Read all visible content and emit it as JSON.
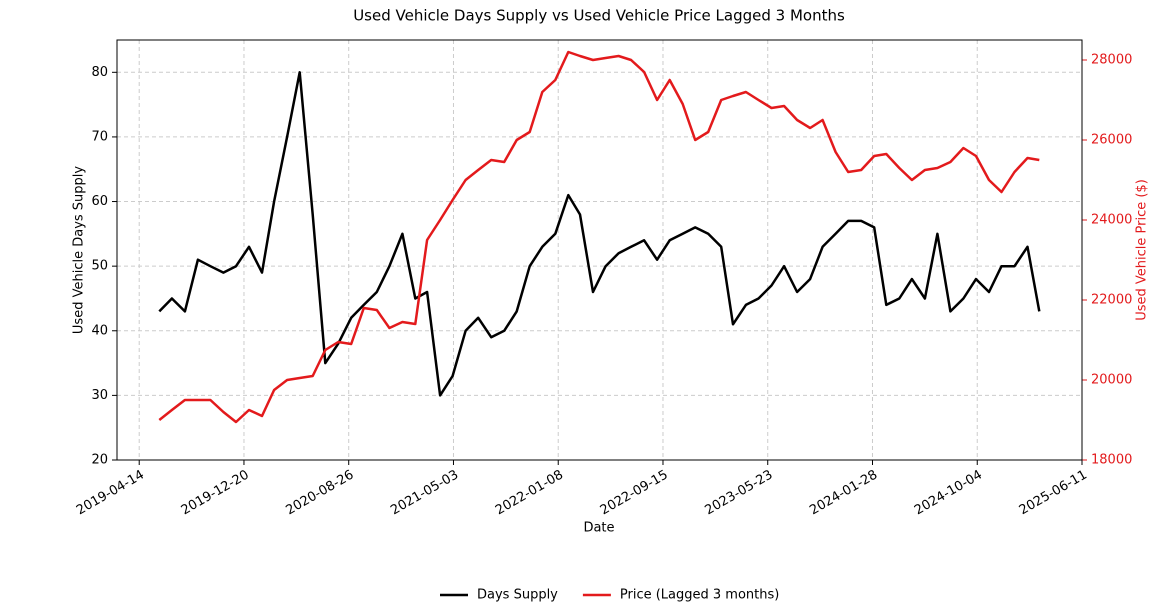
{
  "chart_data": {
    "type": "line",
    "title": "Used Vehicle Days Supply vs Used Vehicle Price Lagged 3 Months",
    "xlabel": "Date",
    "ylabel": "Used Vehicle Days Supply",
    "y2label": "Used Vehicle Price ($)",
    "x": [
      "2019-06-01",
      "2019-07-01",
      "2019-08-01",
      "2019-09-01",
      "2019-10-01",
      "2019-11-01",
      "2019-12-01",
      "2020-01-01",
      "2020-02-01",
      "2020-03-01",
      "2020-04-01",
      "2020-05-01",
      "2020-06-01",
      "2020-07-01",
      "2020-08-01",
      "2020-09-01",
      "2020-10-01",
      "2020-11-01",
      "2020-12-01",
      "2021-01-01",
      "2021-02-01",
      "2021-03-01",
      "2021-04-01",
      "2021-05-01",
      "2021-06-01",
      "2021-07-01",
      "2021-08-01",
      "2021-09-01",
      "2021-10-01",
      "2021-11-01",
      "2021-12-01",
      "2022-01-01",
      "2022-02-01",
      "2022-03-01",
      "2022-04-01",
      "2022-05-01",
      "2022-06-01",
      "2022-07-01",
      "2022-08-01",
      "2022-09-01",
      "2022-10-01",
      "2022-11-01",
      "2022-12-01",
      "2023-01-01",
      "2023-02-01",
      "2023-03-01",
      "2023-04-01",
      "2023-05-01",
      "2023-06-01",
      "2023-07-01",
      "2023-08-01",
      "2023-09-01",
      "2023-10-01",
      "2023-11-01",
      "2023-12-01",
      "2024-01-01",
      "2024-02-01",
      "2024-03-01",
      "2024-04-01",
      "2024-05-01",
      "2024-06-01",
      "2024-07-01",
      "2024-08-01",
      "2024-09-01",
      "2024-10-01",
      "2024-11-01",
      "2024-12-01",
      "2025-01-01",
      "2025-02-01",
      "2025-03-01"
    ],
    "series": [
      {
        "name": "Days Supply",
        "color": "#000000",
        "values": [
          43,
          45,
          43,
          51,
          50,
          49,
          50,
          53,
          49,
          60,
          70,
          80,
          58,
          35,
          38,
          42,
          44,
          46,
          50,
          55,
          45,
          46,
          30,
          33,
          40,
          42,
          39,
          40,
          43,
          50,
          53,
          55,
          61,
          58,
          46,
          50,
          52,
          53,
          54,
          51,
          54,
          55,
          56,
          55,
          53,
          41,
          44,
          45,
          47,
          50,
          46,
          48,
          53,
          55,
          57,
          57,
          56,
          44,
          45,
          48,
          45,
          55,
          43,
          45,
          48,
          46,
          50,
          50,
          53,
          43
        ]
      },
      {
        "name": "Price (Lagged 3 months)",
        "color": "#e31a1c",
        "axis": "y2",
        "values": [
          19000,
          19250,
          19500,
          19500,
          19500,
          19200,
          18950,
          19250,
          19100,
          19750,
          20000,
          20050,
          20100,
          20750,
          20950,
          20900,
          21800,
          21750,
          21300,
          21450,
          21400,
          23500,
          24000,
          24500,
          25000,
          25250,
          25500,
          25450,
          26000,
          26200,
          27200,
          27500,
          28200,
          28100,
          28000,
          28050,
          28100,
          28000,
          27700,
          27000,
          27500,
          26900,
          26000,
          26200,
          27000,
          27100,
          27200,
          27000,
          26800,
          26850,
          26500,
          26300,
          26500,
          25700,
          25200,
          25250,
          25600,
          25650,
          25300,
          25000,
          25250,
          25300,
          25450,
          25800,
          25600,
          25000,
          24700,
          25200,
          25550,
          25500
        ]
      }
    ],
    "xlim": [
      "2019-02-20",
      "2025-06-11"
    ],
    "xticks": [
      "2019-04-14",
      "2019-12-20",
      "2020-08-26",
      "2021-05-03",
      "2022-01-08",
      "2022-09-15",
      "2023-05-23",
      "2024-01-28",
      "2024-10-04",
      "2025-06-11"
    ],
    "ylim": [
      20,
      85
    ],
    "yticks": [
      20,
      30,
      40,
      50,
      60,
      70,
      80
    ],
    "y2lim": [
      18000,
      28500
    ],
    "y2ticks": [
      18000,
      20000,
      22000,
      24000,
      26000,
      28000
    ],
    "grid": true,
    "legend": "bottom"
  }
}
